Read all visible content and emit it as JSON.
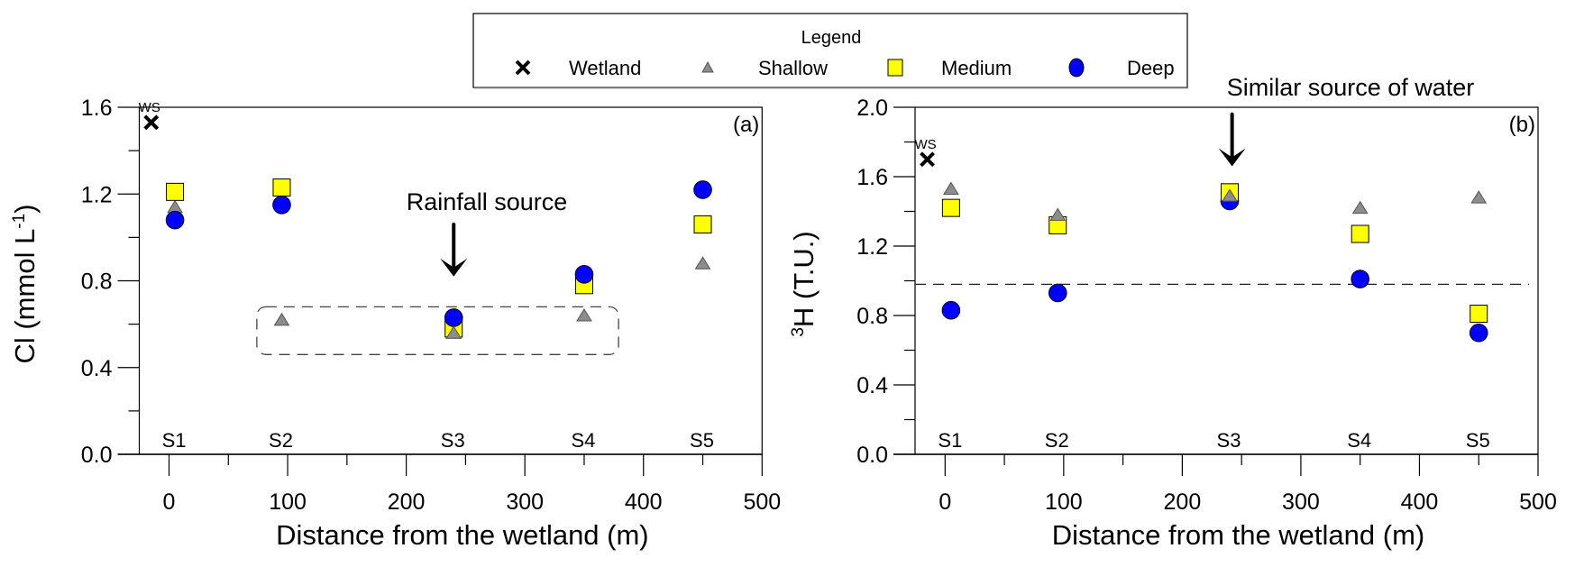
{
  "legend": {
    "title": "Legend",
    "entries": [
      {
        "name": "Wetland",
        "marker": "cross",
        "color": "#000000"
      },
      {
        "name": "Shallow",
        "marker": "triangle",
        "color": "#8c8c8c"
      },
      {
        "name": "Medium",
        "marker": "square",
        "color": "#ffff00"
      },
      {
        "name": "Deep",
        "marker": "circle",
        "color": "#0000ff"
      }
    ]
  },
  "chart_data": [
    {
      "type": "scatter",
      "panel_label": "(a)",
      "title": "",
      "xlabel": "Distance from the wetland (m)",
      "ylabel_main": "Cl (mmol L",
      "ylabel_sup": "-1",
      "ylabel_close": ")",
      "xlim": [
        -25,
        500
      ],
      "ylim": [
        0,
        1.6
      ],
      "xticks": [
        0,
        100,
        200,
        300,
        400,
        500
      ],
      "xticklabels": [
        "0",
        "100",
        "200",
        "300",
        "400",
        "500"
      ],
      "xminor": [
        50,
        150,
        250,
        350,
        450
      ],
      "yticks": [
        0,
        0.4,
        0.8,
        1.2,
        1.6
      ],
      "yticklabels": [
        "0.0",
        "0.4",
        "0.8",
        "1.2",
        "1.6"
      ],
      "yminor": [
        0.2,
        0.6,
        1.0,
        1.4
      ],
      "grid": false,
      "legend_position": "top-center (shared)",
      "sites": [
        {
          "label": "S1",
          "x": 5
        },
        {
          "label": "S2",
          "x": 95
        },
        {
          "label": "S3",
          "x": 240
        },
        {
          "label": "S4",
          "x": 350
        },
        {
          "label": "S5",
          "x": 450
        }
      ],
      "wetland": {
        "label": "WS",
        "x": -15,
        "y": 1.53
      },
      "series": [
        {
          "name": "Shallow",
          "points": [
            [
              5,
              1.14
            ],
            [
              95,
              0.62
            ],
            [
              240,
              0.56
            ],
            [
              350,
              0.64
            ],
            [
              450,
              0.88
            ]
          ]
        },
        {
          "name": "Medium",
          "points": [
            [
              5,
              1.21
            ],
            [
              95,
              1.23
            ],
            [
              240,
              0.58
            ],
            [
              350,
              0.78
            ],
            [
              450,
              1.06
            ]
          ]
        },
        {
          "name": "Deep",
          "points": [
            [
              5,
              1.08
            ],
            [
              95,
              1.15
            ],
            [
              240,
              0.63
            ],
            [
              350,
              0.83
            ],
            [
              450,
              1.22
            ]
          ]
        }
      ],
      "annotations": [
        {
          "text": "Rainfall source",
          "arrow_x": 240,
          "arrow_from_y": 1.06,
          "arrow_to_y": 0.82
        }
      ],
      "highlight_box": {
        "x0": 74,
        "x1": 379,
        "y0": 0.46,
        "y1": 0.68
      }
    },
    {
      "type": "scatter",
      "panel_label": "(b)",
      "title": "",
      "xlabel": "Distance from the wetland (m)",
      "ylabel_sup": "3",
      "ylabel_main": "H (T.U.)",
      "xlim": [
        -25,
        500
      ],
      "ylim": [
        0,
        2.0
      ],
      "xticks": [
        0,
        100,
        200,
        300,
        400,
        500
      ],
      "xticklabels": [
        "0",
        "100",
        "200",
        "300",
        "400",
        "500"
      ],
      "xminor": [
        50,
        150,
        250,
        350,
        450
      ],
      "yticks": [
        0,
        0.4,
        0.8,
        1.2,
        1.6,
        2.0
      ],
      "yticklabels": [
        "0.0",
        "0.4",
        "0.8",
        "1.2",
        "1.6",
        "2.0"
      ],
      "yminor": [
        0.2,
        0.6,
        1.0,
        1.4,
        1.8
      ],
      "grid": false,
      "sites": [
        {
          "label": "S1",
          "x": 5
        },
        {
          "label": "S2",
          "x": 95
        },
        {
          "label": "S3",
          "x": 240
        },
        {
          "label": "S4",
          "x": 350
        },
        {
          "label": "S5",
          "x": 450
        }
      ],
      "wetland": {
        "label": "WS",
        "x": -15,
        "y": 1.7
      },
      "series": [
        {
          "name": "Shallow",
          "points": [
            [
              5,
              1.53
            ],
            [
              95,
              1.38
            ],
            [
              240,
              1.49
            ],
            [
              350,
              1.42
            ],
            [
              450,
              1.48
            ]
          ]
        },
        {
          "name": "Medium",
          "points": [
            [
              5,
              1.42
            ],
            [
              95,
              1.32
            ],
            [
              240,
              1.51
            ],
            [
              350,
              1.27
            ],
            [
              450,
              0.81
            ]
          ]
        },
        {
          "name": "Deep",
          "points": [
            [
              5,
              0.83
            ],
            [
              95,
              0.93
            ],
            [
              240,
              1.46
            ],
            [
              350,
              1.01
            ],
            [
              450,
              0.7
            ]
          ]
        }
      ],
      "reference_line": {
        "y": 0.98,
        "style": "dashed"
      },
      "annotations": [
        {
          "text": "Similar source of water",
          "arrow_x": 242,
          "arrow_from_y": 1.96,
          "arrow_to_y": 1.66
        }
      ]
    }
  ]
}
